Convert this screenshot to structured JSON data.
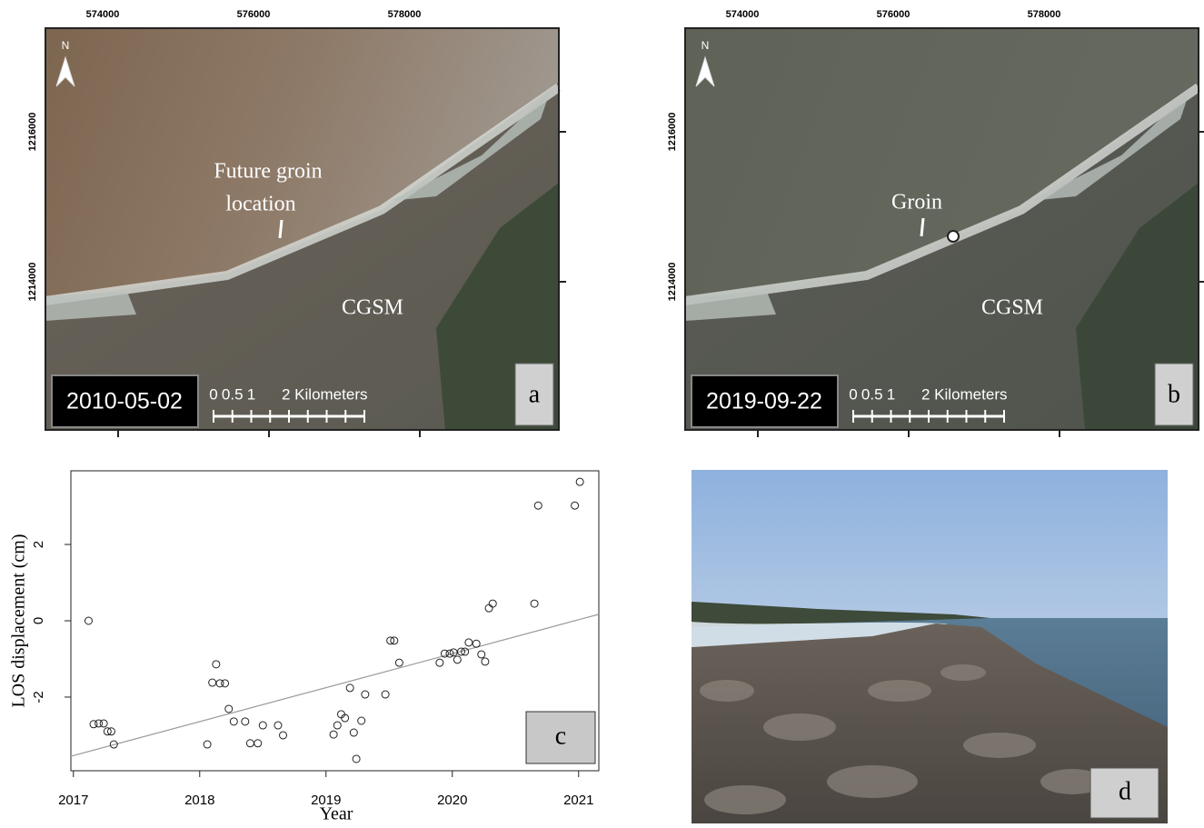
{
  "maps": {
    "x_ticks": [
      "574000",
      "576000",
      "578000"
    ],
    "y_ticks": [
      "1216000",
      "1214000"
    ],
    "north": "N",
    "scale_labels": [
      "0",
      "0.5",
      "1",
      "2 Kilometers"
    ],
    "a": {
      "date": "2010-05-02",
      "letter": "a",
      "annotation": [
        "Future groin",
        "location"
      ],
      "place": "CGSM"
    },
    "b": {
      "date": "2019-09-22",
      "letter": "b",
      "annotation": [
        "Groin"
      ],
      "place": "CGSM"
    }
  },
  "photo": {
    "letter": "d"
  },
  "chart_data": {
    "type": "scatter",
    "panel_label": "c",
    "x_label": "Year",
    "y_label": "LOS displacement (cm)",
    "x": [
      2017.12,
      2017.16,
      2017.2,
      2017.24,
      2017.27,
      2017.3,
      2017.32,
      2018.06,
      2018.1,
      2018.13,
      2018.16,
      2018.2,
      2018.23,
      2018.27,
      2018.36,
      2018.4,
      2018.46,
      2018.5,
      2018.62,
      2018.66,
      2019.06,
      2019.09,
      2019.12,
      2019.15,
      2019.19,
      2019.22,
      2019.24,
      2019.28,
      2019.31,
      2019.47,
      2019.51,
      2019.54,
      2019.58,
      2019.9,
      2019.94,
      2019.98,
      2020.01,
      2020.04,
      2020.07,
      2020.1,
      2020.13,
      2020.19,
      2020.23,
      2020.26,
      2020.29,
      2020.32,
      2020.65,
      2020.68,
      2020.97,
      2021.01
    ],
    "series": [
      {
        "color": "#222222",
        "values": [
          0,
          -2.71,
          -2.69,
          -2.69,
          -2.9,
          -2.9,
          -3.24,
          -3.24,
          -1.62,
          -1.14,
          -1.64,
          -1.64,
          -2.31,
          -2.64,
          -2.64,
          -3.21,
          -3.21,
          -2.74,
          -2.74,
          -3.0,
          -2.98,
          -2.74,
          -2.45,
          -2.55,
          -1.76,
          -2.93,
          -3.62,
          -2.62,
          -1.93,
          -1.93,
          -0.52,
          -0.52,
          -1.1,
          -1.1,
          -0.86,
          -0.86,
          -0.83,
          -1.02,
          -0.81,
          -0.81,
          -0.57,
          -0.6,
          -0.88,
          -1.07,
          0.33,
          0.45,
          0.45,
          3.02,
          3.02,
          3.64
        ]
      }
    ],
    "trend_line": {
      "color": "#999999",
      "x": [
        2016.98,
        2021.16
      ],
      "values": [
        -3.55,
        0.17
      ]
    },
    "xlim": [
      2016.98,
      2021.16
    ],
    "ylim": [
      -3.93,
      3.93
    ],
    "xticks": [
      2017,
      2018,
      2019,
      2020,
      2021
    ],
    "yticks": [
      -2,
      0,
      2
    ]
  }
}
